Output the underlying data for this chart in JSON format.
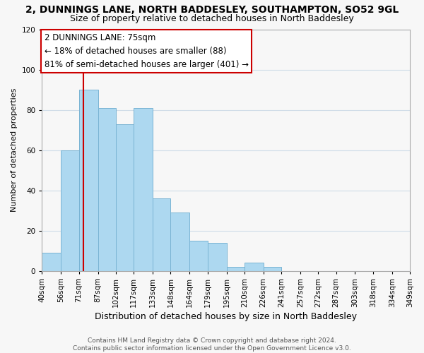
{
  "title": "2, DUNNINGS LANE, NORTH BADDESLEY, SOUTHAMPTON, SO52 9GL",
  "subtitle": "Size of property relative to detached houses in North Baddesley",
  "xlabel": "Distribution of detached houses by size in North Baddesley",
  "ylabel": "Number of detached properties",
  "bar_color": "#add8f0",
  "bar_edge_color": "#7ab4d4",
  "bins": [
    40,
    56,
    71,
    87,
    102,
    117,
    133,
    148,
    164,
    179,
    195,
    210,
    226,
    241,
    257,
    272,
    287,
    303,
    318,
    334,
    349
  ],
  "bin_labels": [
    "40sqm",
    "56sqm",
    "71sqm",
    "87sqm",
    "102sqm",
    "117sqm",
    "133sqm",
    "148sqm",
    "164sqm",
    "179sqm",
    "195sqm",
    "210sqm",
    "226sqm",
    "241sqm",
    "257sqm",
    "272sqm",
    "287sqm",
    "303sqm",
    "318sqm",
    "334sqm",
    "349sqm"
  ],
  "counts": [
    9,
    60,
    90,
    81,
    73,
    81,
    36,
    29,
    15,
    14,
    2,
    4,
    2,
    0,
    0,
    0,
    0,
    0,
    0,
    0
  ],
  "ylim": [
    0,
    120
  ],
  "yticks": [
    0,
    20,
    40,
    60,
    80,
    100,
    120
  ],
  "vline_x": 75,
  "vline_color": "#cc0000",
  "ann_line1": "2 DUNNINGS LANE: 75sqm",
  "ann_line2": "← 18% of detached houses are smaller (88)",
  "ann_line3": "81% of semi-detached houses are larger (401) →",
  "footer_text": "Contains HM Land Registry data © Crown copyright and database right 2024.\nContains public sector information licensed under the Open Government Licence v3.0.",
  "background_color": "#f7f7f7",
  "grid_color": "#d0dde8",
  "title_fontsize": 10,
  "subtitle_fontsize": 9,
  "xlabel_fontsize": 9,
  "ylabel_fontsize": 8,
  "tick_fontsize": 7.5,
  "ann_fontsize": 8.5,
  "footer_fontsize": 6.5
}
